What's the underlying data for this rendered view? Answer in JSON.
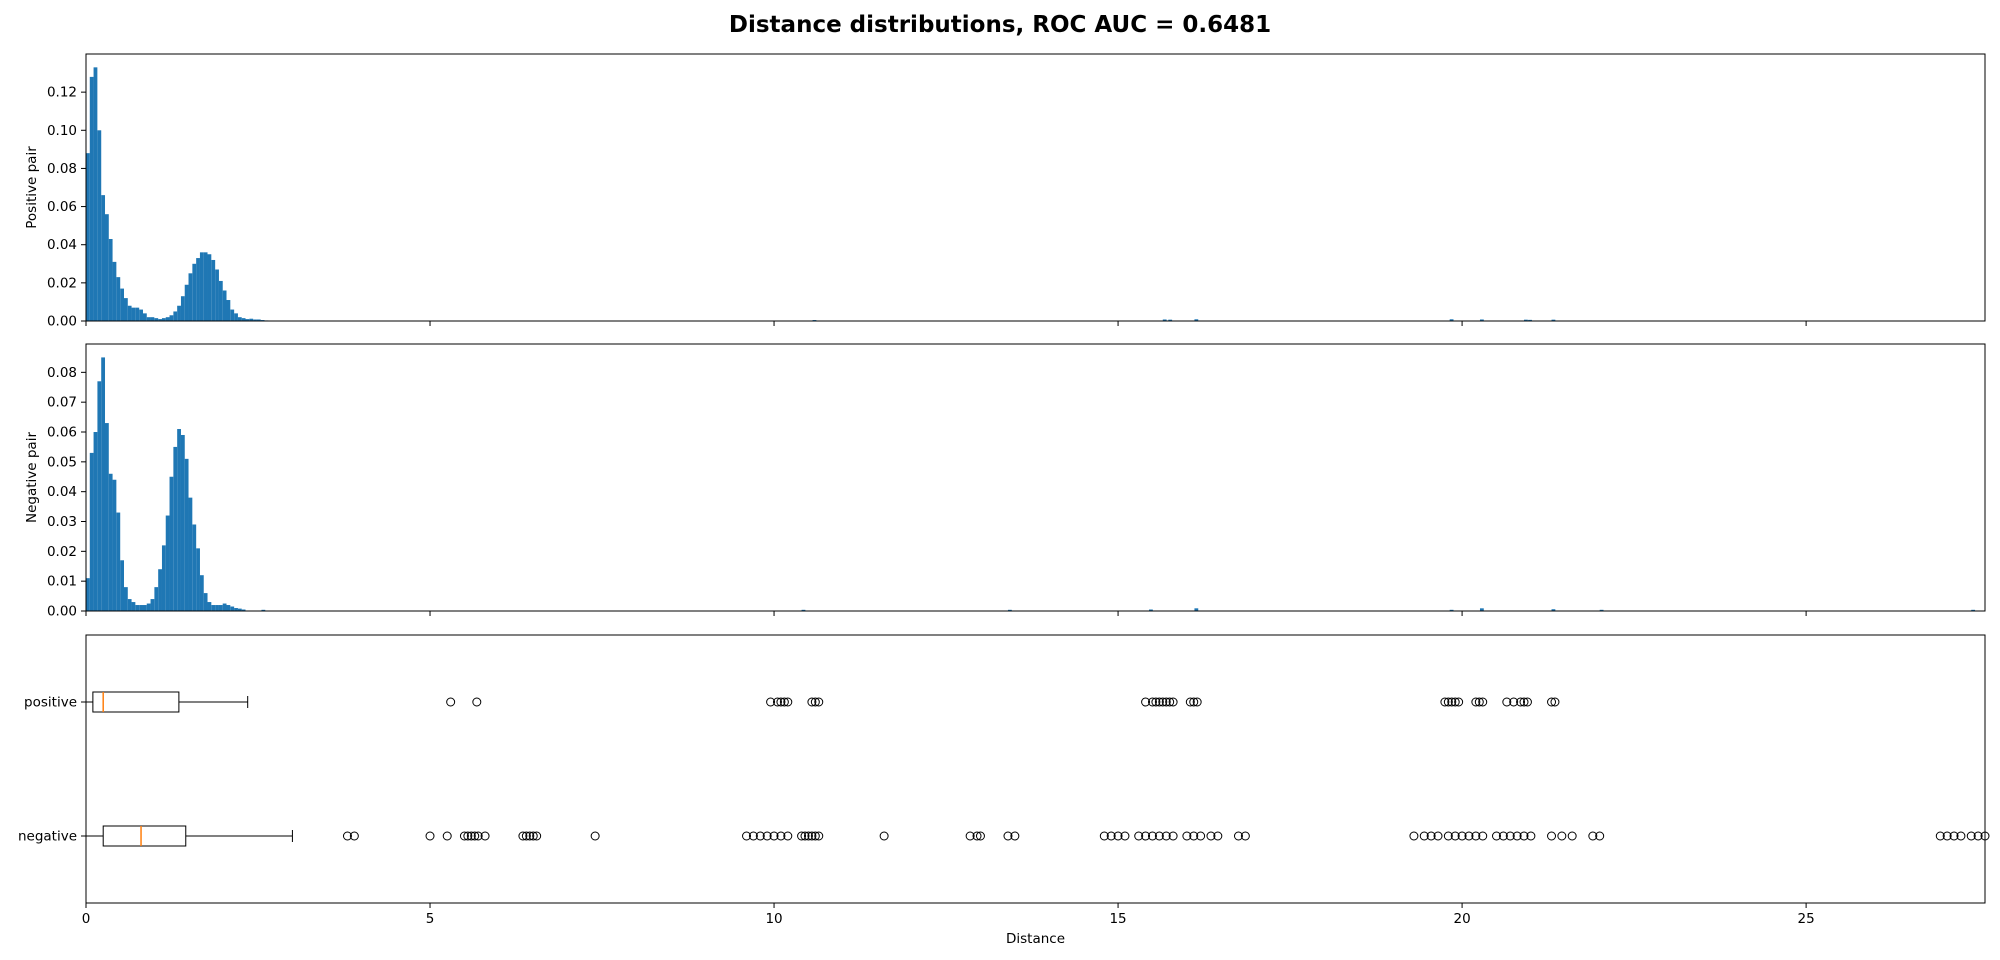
{
  "title": "Distance distributions, ROC AUC = 0.6481",
  "chart_data": [
    {
      "type": "bar",
      "panel": "histogram",
      "ylabel": "Positive pair",
      "xlim": [
        0,
        27.6
      ],
      "ylim": [
        0,
        0.14
      ],
      "yticks": [
        0.0,
        0.02,
        0.04,
        0.06,
        0.08,
        0.1,
        0.12
      ],
      "ytick_labels": [
        "0.00",
        "0.02",
        "0.04",
        "0.06",
        "0.08",
        "0.10",
        "0.12"
      ],
      "xticks": [
        0,
        5,
        10,
        15,
        20,
        25
      ],
      "bin_width": 0.0552,
      "color": "#1f77b4",
      "bins": [
        [
          0.0,
          0.088
        ],
        [
          0.055,
          0.128
        ],
        [
          0.11,
          0.133
        ],
        [
          0.166,
          0.1
        ],
        [
          0.221,
          0.066
        ],
        [
          0.276,
          0.056
        ],
        [
          0.331,
          0.043
        ],
        [
          0.386,
          0.031
        ],
        [
          0.442,
          0.023
        ],
        [
          0.497,
          0.017
        ],
        [
          0.552,
          0.012
        ],
        [
          0.607,
          0.008
        ],
        [
          0.662,
          0.007
        ],
        [
          0.718,
          0.007
        ],
        [
          0.773,
          0.006
        ],
        [
          0.828,
          0.004
        ],
        [
          0.883,
          0.002
        ],
        [
          0.938,
          0.002
        ],
        [
          0.994,
          0.0015
        ],
        [
          1.049,
          0.001
        ],
        [
          1.104,
          0.0015
        ],
        [
          1.159,
          0.002
        ],
        [
          1.214,
          0.003
        ],
        [
          1.27,
          0.005
        ],
        [
          1.325,
          0.008
        ],
        [
          1.38,
          0.013
        ],
        [
          1.435,
          0.019
        ],
        [
          1.49,
          0.025
        ],
        [
          1.546,
          0.03
        ],
        [
          1.601,
          0.033
        ],
        [
          1.656,
          0.036
        ],
        [
          1.711,
          0.036
        ],
        [
          1.766,
          0.035
        ],
        [
          1.822,
          0.032
        ],
        [
          1.877,
          0.027
        ],
        [
          1.932,
          0.021
        ],
        [
          1.987,
          0.016
        ],
        [
          2.042,
          0.011
        ],
        [
          2.098,
          0.006
        ],
        [
          2.153,
          0.004
        ],
        [
          2.208,
          0.002
        ],
        [
          2.263,
          0.0015
        ],
        [
          2.318,
          0.001
        ],
        [
          2.374,
          0.0012
        ],
        [
          2.429,
          0.0008
        ],
        [
          2.484,
          0.0008
        ],
        [
          2.539,
          0.0005
        ],
        [
          2.594,
          0.0003
        ],
        [
          10.56,
          0.0005
        ],
        [
          15.65,
          0.0008
        ],
        [
          15.73,
          0.0007
        ],
        [
          16.11,
          0.0009
        ],
        [
          19.82,
          0.0009
        ],
        [
          20.26,
          0.0008
        ],
        [
          20.9,
          0.0007
        ],
        [
          20.96,
          0.0006
        ],
        [
          21.3,
          0.0007
        ]
      ]
    },
    {
      "type": "bar",
      "panel": "histogram",
      "ylabel": "Negative pair",
      "xlim": [
        0,
        27.6
      ],
      "ylim": [
        0,
        0.0895
      ],
      "yticks": [
        0.0,
        0.01,
        0.02,
        0.03,
        0.04,
        0.05,
        0.06,
        0.07,
        0.08
      ],
      "ytick_labels": [
        "0.00",
        "0.01",
        "0.02",
        "0.03",
        "0.04",
        "0.05",
        "0.06",
        "0.07",
        "0.08"
      ],
      "xticks": [
        0,
        5,
        10,
        15,
        20,
        25
      ],
      "bin_width": 0.0552,
      "color": "#1f77b4",
      "bins": [
        [
          0.0,
          0.011
        ],
        [
          0.055,
          0.053
        ],
        [
          0.11,
          0.06
        ],
        [
          0.166,
          0.077
        ],
        [
          0.221,
          0.085
        ],
        [
          0.276,
          0.063
        ],
        [
          0.331,
          0.046
        ],
        [
          0.386,
          0.044
        ],
        [
          0.442,
          0.033
        ],
        [
          0.497,
          0.017
        ],
        [
          0.552,
          0.008
        ],
        [
          0.607,
          0.004
        ],
        [
          0.662,
          0.003
        ],
        [
          0.718,
          0.002
        ],
        [
          0.773,
          0.002
        ],
        [
          0.828,
          0.002
        ],
        [
          0.883,
          0.0025
        ],
        [
          0.938,
          0.004
        ],
        [
          0.994,
          0.008
        ],
        [
          1.049,
          0.014
        ],
        [
          1.104,
          0.022
        ],
        [
          1.159,
          0.032
        ],
        [
          1.214,
          0.045
        ],
        [
          1.27,
          0.055
        ],
        [
          1.325,
          0.061
        ],
        [
          1.38,
          0.059
        ],
        [
          1.435,
          0.051
        ],
        [
          1.49,
          0.038
        ],
        [
          1.546,
          0.029
        ],
        [
          1.601,
          0.021
        ],
        [
          1.656,
          0.012
        ],
        [
          1.711,
          0.006
        ],
        [
          1.766,
          0.003
        ],
        [
          1.822,
          0.002
        ],
        [
          1.877,
          0.002
        ],
        [
          1.932,
          0.002
        ],
        [
          1.987,
          0.0025
        ],
        [
          2.042,
          0.002
        ],
        [
          2.098,
          0.0015
        ],
        [
          2.153,
          0.001
        ],
        [
          2.208,
          0.0008
        ],
        [
          2.263,
          0.0005
        ],
        [
          2.55,
          0.0004
        ],
        [
          10.4,
          0.0004
        ],
        [
          13.4,
          0.0004
        ],
        [
          15.45,
          0.0005
        ],
        [
          16.11,
          0.0009
        ],
        [
          19.82,
          0.0004
        ],
        [
          20.26,
          0.0009
        ],
        [
          21.3,
          0.0006
        ],
        [
          22.0,
          0.0004
        ],
        [
          27.4,
          0.0004
        ]
      ]
    },
    {
      "type": "boxplot",
      "orientation": "horizontal",
      "xlabel": "Distance",
      "xlim": [
        0,
        27.6
      ],
      "xticks": [
        0,
        5,
        10,
        15,
        20,
        25
      ],
      "xtick_labels": [
        "0",
        "5",
        "10",
        "15",
        "20",
        "25"
      ],
      "median_color": "#ff7f0e",
      "series": [
        {
          "name": "positive",
          "whisker_low": 0.0,
          "q1": 0.1,
          "median": 0.25,
          "q3": 1.35,
          "whisker_high": 2.35,
          "outliers": [
            5.3,
            5.68,
            9.95,
            10.05,
            10.1,
            10.15,
            10.2,
            10.55,
            10.6,
            10.65,
            15.4,
            15.5,
            15.55,
            15.6,
            15.65,
            15.7,
            15.75,
            15.8,
            16.05,
            16.1,
            16.15,
            19.75,
            19.8,
            19.85,
            19.9,
            19.95,
            20.2,
            20.25,
            20.3,
            20.65,
            20.75,
            20.85,
            20.9,
            20.95,
            21.3,
            21.35
          ]
        },
        {
          "name": "negative",
          "whisker_low": 0.0,
          "q1": 0.25,
          "median": 0.8,
          "q3": 1.45,
          "whisker_high": 3.0,
          "outliers": [
            3.8,
            3.9,
            5.0,
            5.25,
            5.5,
            5.55,
            5.6,
            5.65,
            5.7,
            5.8,
            6.35,
            6.4,
            6.45,
            6.5,
            6.55,
            7.4,
            9.6,
            9.7,
            9.8,
            9.9,
            10.0,
            10.1,
            10.2,
            10.4,
            10.45,
            10.5,
            10.55,
            10.6,
            10.65,
            11.6,
            12.85,
            12.95,
            13.0,
            13.4,
            13.5,
            14.8,
            14.9,
            15.0,
            15.1,
            15.3,
            15.4,
            15.5,
            15.6,
            15.7,
            15.8,
            16.0,
            16.1,
            16.2,
            16.35,
            16.45,
            16.75,
            16.85,
            19.3,
            19.45,
            19.55,
            19.65,
            19.8,
            19.9,
            20.0,
            20.1,
            20.2,
            20.3,
            20.5,
            20.6,
            20.7,
            20.8,
            20.9,
            21.0,
            21.3,
            21.45,
            21.6,
            21.9,
            22.0,
            26.95,
            27.05,
            27.15,
            27.25,
            27.4,
            27.5,
            27.6
          ]
        }
      ]
    }
  ]
}
